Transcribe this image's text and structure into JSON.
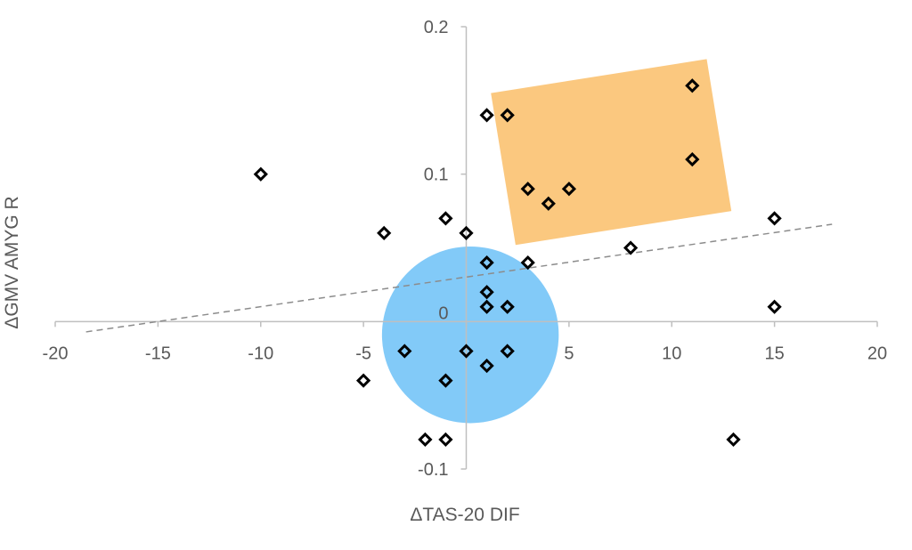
{
  "chart_data": {
    "type": "scatter",
    "title": "",
    "xlabel": "ΔTAS-20 DIF",
    "ylabel": "ΔGMV AMYG R",
    "xlim": [
      -20,
      20
    ],
    "ylim": [
      -0.1,
      0.2
    ],
    "x_ticks": [
      -20,
      -15,
      -10,
      -5,
      5,
      10,
      15,
      20
    ],
    "x_tick_labels": [
      "-20",
      "-15",
      "-10",
      "-5",
      "5",
      "10",
      "15",
      "20"
    ],
    "y_ticks": [
      0.2,
      0.1,
      0,
      -0.1
    ],
    "y_tick_labels": [
      "0.2",
      "0.1",
      "0",
      "-0.1"
    ],
    "grid": false,
    "legend": "none",
    "marker": "diamond-open",
    "points": [
      {
        "x": -10,
        "y": 0.1
      },
      {
        "x": -4,
        "y": 0.06
      },
      {
        "x": -1,
        "y": 0.07
      },
      {
        "x": 0,
        "y": 0.06
      },
      {
        "x": 1,
        "y": 0.14
      },
      {
        "x": 2,
        "y": 0.14
      },
      {
        "x": 3,
        "y": 0.09
      },
      {
        "x": 4,
        "y": 0.08
      },
      {
        "x": 5,
        "y": 0.09
      },
      {
        "x": 11,
        "y": 0.16
      },
      {
        "x": 11,
        "y": 0.11
      },
      {
        "x": 15,
        "y": 0.07
      },
      {
        "x": 8,
        "y": 0.05
      },
      {
        "x": 3,
        "y": 0.04
      },
      {
        "x": 1,
        "y": 0.04
      },
      {
        "x": 1,
        "y": 0.02
      },
      {
        "x": 1,
        "y": 0.01
      },
      {
        "x": 2,
        "y": 0.01
      },
      {
        "x": 15,
        "y": 0.01
      },
      {
        "x": -3,
        "y": -0.02
      },
      {
        "x": 0,
        "y": -0.02
      },
      {
        "x": 2,
        "y": -0.02
      },
      {
        "x": 1,
        "y": -0.03
      },
      {
        "x": -1,
        "y": -0.04
      },
      {
        "x": -5,
        "y": -0.04
      },
      {
        "x": -2,
        "y": -0.08
      },
      {
        "x": -1,
        "y": -0.08
      },
      {
        "x": 13,
        "y": -0.08
      }
    ],
    "trendline": {
      "style": "dashed",
      "color": "#8c8c8c",
      "x": [
        -18.5,
        17.8
      ],
      "y": [
        -0.007,
        0.066
      ]
    },
    "highlights": [
      {
        "shape": "circle",
        "color": "#4db3f5",
        "opacity": 0.7,
        "center": [
          0.2,
          -0.009
        ],
        "radius_x": 4.3
      },
      {
        "shape": "rotated-rectangle",
        "color": "#f9b654",
        "opacity": 0.75,
        "corners": [
          [
            1.2,
            0.155
          ],
          [
            11.7,
            0.178
          ],
          [
            12.9,
            0.075
          ],
          [
            2.4,
            0.052
          ]
        ]
      }
    ],
    "colors": {
      "marker": "#000000",
      "axis": "#bfbfbf",
      "text": "#595959"
    }
  }
}
